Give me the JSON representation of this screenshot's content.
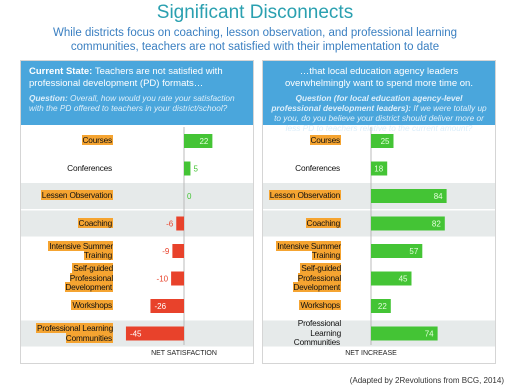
{
  "title": "Significant Disconnects",
  "subtitle": "While districts focus on coaching, lesson observation, and professional learning communities, teachers are not satisfied with their implementation to date",
  "source": "(Adapted by 2Revolutions from BCG, 2014)",
  "chart_data": [
    {
      "type": "bar",
      "orientation": "horizontal",
      "heading_lead": "Current State:",
      "heading": "Teachers are not satisfied with professional development (PD) formats…",
      "question_lead": "Question:",
      "question": "Overall, how would you rate your satisfaction with the PD offered to teachers in your district/school?",
      "x_label": "NET SATISFACTION",
      "categories": [
        "Courses",
        "Conferences",
        "Lessen Observation",
        "Coaching",
        "Intensive Summer Training",
        "Self-guided Professional Development",
        "Workshops",
        "Professional Learning Communities"
      ],
      "values": [
        22,
        5,
        0,
        -6,
        -9,
        -10,
        -26,
        -45
      ],
      "highlight": [
        true,
        false,
        true,
        true,
        true,
        true,
        true,
        true
      ],
      "color_positive": "#44c435",
      "color_negative": "#e8422b",
      "highlight_color": "#f5a431"
    },
    {
      "type": "bar",
      "orientation": "horizontal",
      "heading": "…that local education agency leaders overwhelmingly want to spend more time on.",
      "question_lead": "Question (for local education agency-level professional development leaders):",
      "question": "If we were totally up to you, do you believe your district should deliver more or less PD to teachers relative to the current amount?",
      "x_label": "NET INCREASE",
      "categories": [
        "Courses",
        "Conferences",
        "Lesson Observation",
        "Coaching",
        "Intensive Summer Training",
        "Self-guided Professional Development",
        "Workshops",
        "Professional Learning Communities"
      ],
      "values": [
        25,
        18,
        84,
        82,
        57,
        45,
        22,
        74
      ],
      "highlight": [
        true,
        false,
        true,
        true,
        true,
        true,
        true,
        false
      ],
      "color_positive": "#44c435",
      "color_negative": "#e8422b",
      "highlight_color": "#f5a431"
    }
  ]
}
